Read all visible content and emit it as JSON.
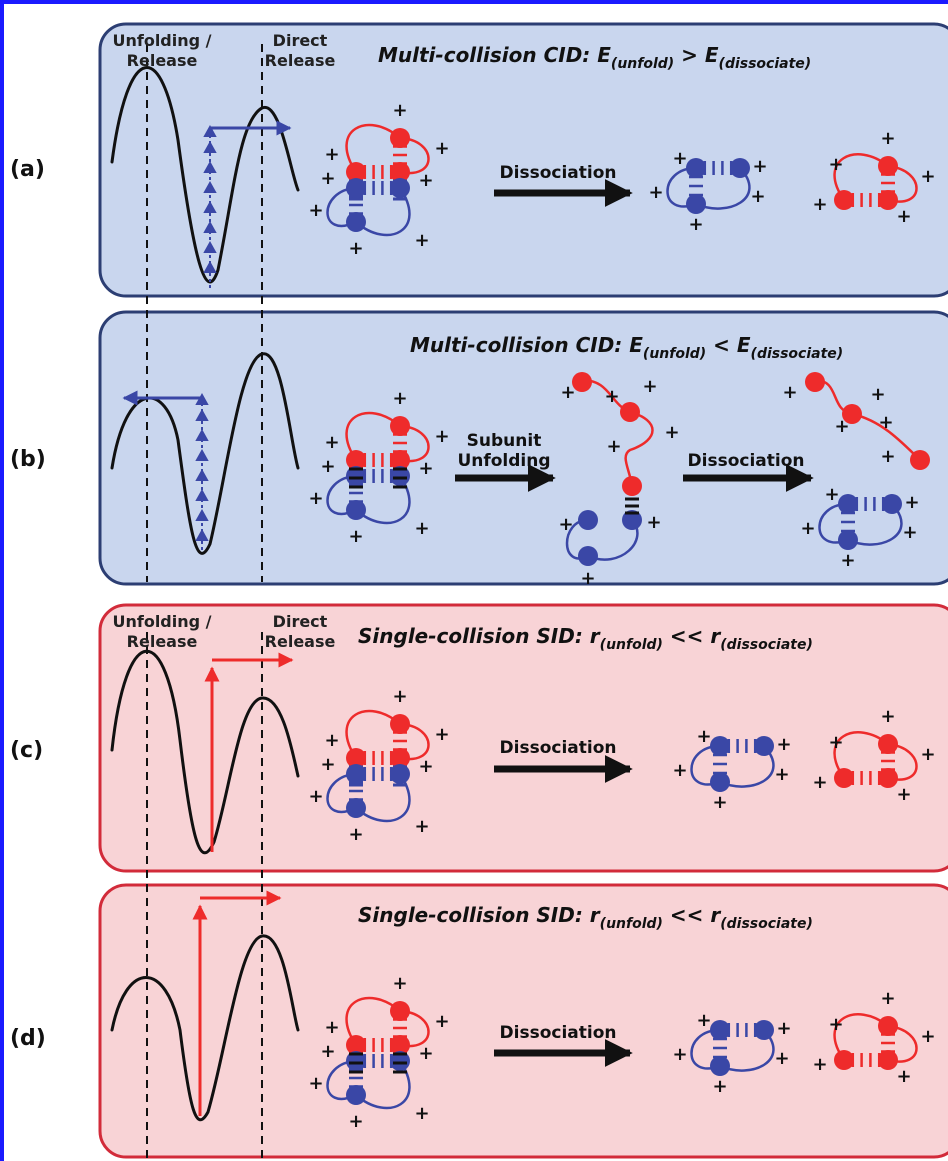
{
  "labels": {
    "unfolding_release": [
      "Unfolding /",
      "Release"
    ],
    "direct_release": [
      "Direct",
      "Release"
    ]
  },
  "panels": [
    {
      "id": "a",
      "label": "(a)",
      "color": "blue",
      "title": "Multi-collision CID: E",
      "sub1": "(unfold)",
      "op": " > E",
      "sub2": "(dissociate)",
      "step1": "Dissociation",
      "step2": ""
    },
    {
      "id": "b",
      "label": "(b)",
      "color": "blue",
      "title": "Multi-collision CID: E",
      "sub1": "(unfold)",
      "op": " < E",
      "sub2": "(dissociate)",
      "step1": "Subunit Unfolding",
      "step2": "Dissociation"
    },
    {
      "id": "c",
      "label": "(c)",
      "color": "red",
      "title": "Single-collision SID: r",
      "sub1": "(unfold)",
      "op": " << r",
      "sub2": "(dissociate)",
      "step1": "Dissociation",
      "step2": ""
    },
    {
      "id": "d",
      "label": "(d)",
      "color": "red",
      "title": "Single-collision SID: r",
      "sub1": "(unfold)",
      "op": " << r",
      "sub2": "(dissociate)",
      "step1": "Dissociation",
      "step2": ""
    }
  ],
  "colors": {
    "blue_panel_fill": "#c9d6ee",
    "blue_panel_stroke": "#2c3e73",
    "red_panel_fill": "#f8d3d6",
    "red_panel_stroke": "#d22b3a",
    "blue_subunit": "#3a47a6",
    "red_subunit": "#ee2b2b",
    "energy_curve": "#111111"
  }
}
